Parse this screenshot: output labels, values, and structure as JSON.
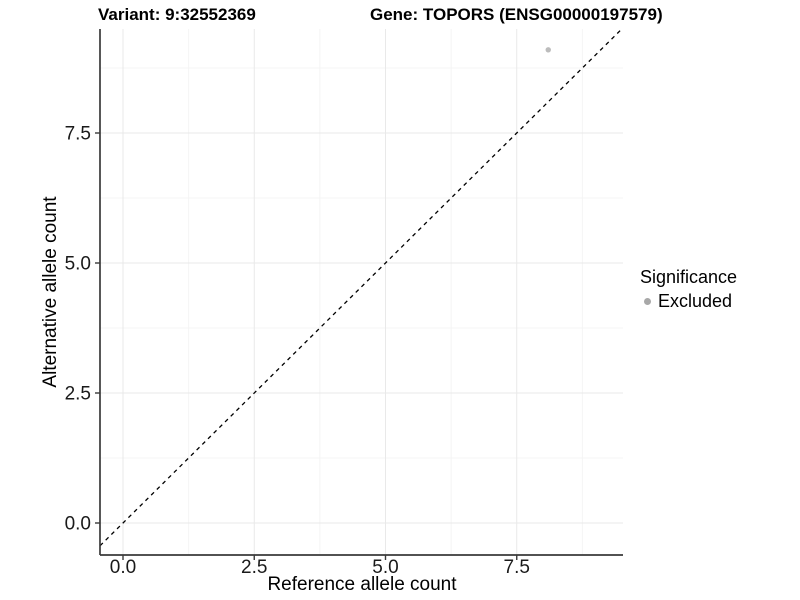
{
  "chart_data": {
    "type": "scatter",
    "titles": {
      "left": "Variant: 9:32552369",
      "right": "Gene: TOPORS (ENSG00000197579)"
    },
    "xlabel": "Reference allele count",
    "ylabel": "Alternative allele count",
    "xlim": [
      -0.45,
      9.55
    ],
    "ylim": [
      -0.6,
      9.5
    ],
    "x_ticks": {
      "values": [
        0,
        2.5,
        5,
        7.5
      ],
      "labels": [
        "0.0",
        "2.5",
        "5.0",
        "7.5"
      ],
      "minor": [
        1.25,
        3.75,
        6.25,
        8.75
      ]
    },
    "y_ticks": {
      "values": [
        0,
        2.5,
        5,
        7.5
      ],
      "labels": [
        "0.0",
        "2.5",
        "5.0",
        "7.5"
      ],
      "minor": [
        1.25,
        3.75,
        6.25,
        8.75
      ]
    },
    "grid": {
      "on": true,
      "major_color": "#e9e9e9",
      "minor_color": "#f4f4f4"
    },
    "axis_color": "#3a3a3a",
    "tick_text_color": "#1a1a1a",
    "reference_line": {
      "name": "identity-line",
      "slope": 1,
      "intercept": 0,
      "style": "dashed",
      "color": "#000000"
    },
    "series": [
      {
        "name": "Excluded",
        "color": "#bcbcbc",
        "marker": "circle",
        "points": [
          {
            "x": 8.1,
            "y": 9.1
          }
        ]
      }
    ],
    "legend": {
      "title": "Significance",
      "position": "right",
      "entries": [
        {
          "label": "Excluded",
          "color": "#a8a8a8",
          "marker": "circle"
        }
      ]
    }
  }
}
